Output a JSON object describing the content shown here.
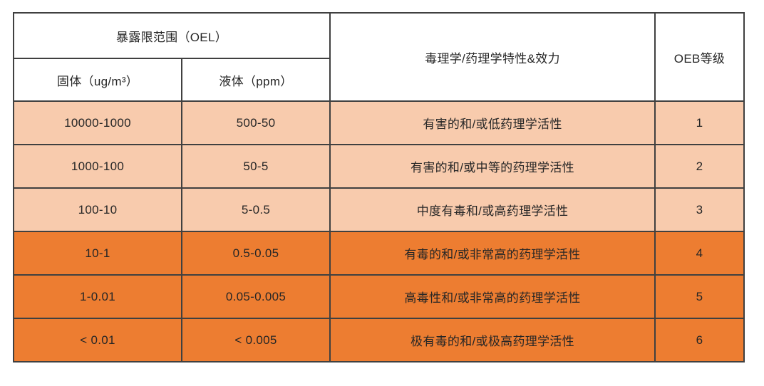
{
  "table": {
    "header": {
      "oel_group": "暴露限范围（OEL）",
      "solid": "固体（ug/m³）",
      "liquid": "液体（ppm）",
      "toxicology": "毒理学/药理学特性&效力",
      "oeb": "OEB等级"
    },
    "rows": [
      {
        "solid": "10000-1000",
        "liquid": "500-50",
        "toxicology": "有害的和/或低药理学活性",
        "oeb": "1"
      },
      {
        "solid": "1000-100",
        "liquid": "50-5",
        "toxicology": "有害的和/或中等的药理学活性",
        "oeb": "2"
      },
      {
        "solid": "100-10",
        "liquid": "5-0.5",
        "toxicology": "中度有毒和/或高药理学活性",
        "oeb": "3"
      },
      {
        "solid": "10-1",
        "liquid": "0.5-0.05",
        "toxicology": "有毒的和/或非常高的药理学活性",
        "oeb": "4"
      },
      {
        "solid": "1-0.01",
        "liquid": "0.05-0.005",
        "toxicology": "高毒性和/或非常高的药理学活性",
        "oeb": "5"
      },
      {
        "solid": "< 0.01",
        "liquid": "< 0.005",
        "toxicology": "极有毒的和/或极高药理学活性",
        "oeb": "6"
      }
    ],
    "colors": {
      "light_row": "#F8CBAD",
      "dark_row": "#ED7D31",
      "border": "#404040",
      "text": "#262626",
      "header_bg": "#FFFFFF"
    }
  }
}
